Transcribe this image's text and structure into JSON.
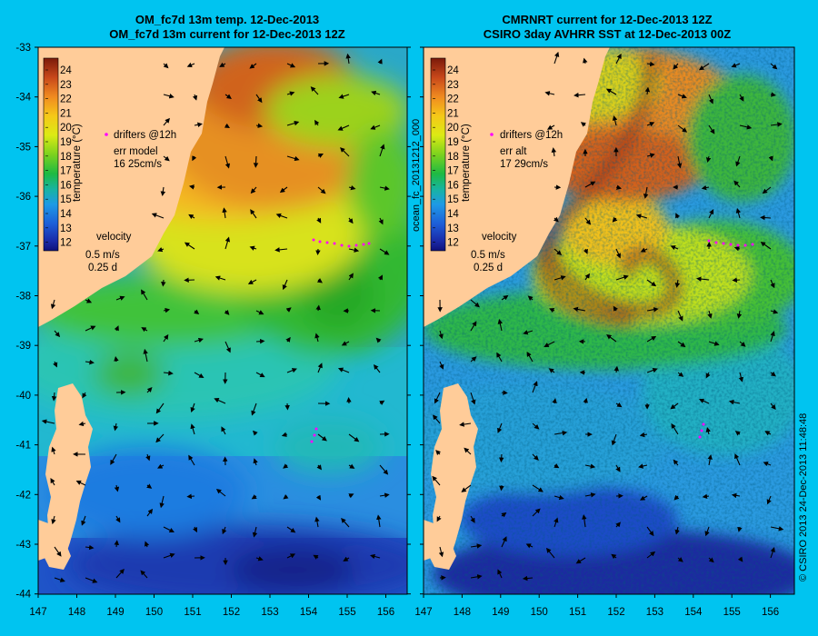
{
  "panels": [
    {
      "title1": "OM_fc7d 13m temp. 12-Dec-2013",
      "title2": "OM_fc7d 13m current for 12-Dec-2013 12Z",
      "drifters": "drifters @12h",
      "err1": "err model",
      "err2": "16 25cm/s"
    },
    {
      "title1": "CMRNRT current for 12-Dec-2013 12Z",
      "title2": "CSIRO 3day AVHRR SST at 12-Dec-2013 00Z",
      "drifters": "drifters @12h",
      "err1": "err alt",
      "err2": "17 29cm/s"
    }
  ],
  "colorbar": {
    "label": "temperature (°C)",
    "ticks": [
      "24",
      "23",
      "22",
      "21",
      "20",
      "19",
      "18",
      "17",
      "16",
      "15",
      "14",
      "13",
      "12"
    ]
  },
  "velocity": {
    "label": "velocity",
    "scale1": "0.5 m/s",
    "scale2": "0.25 d"
  },
  "lat_ticks": [
    "-33",
    "-34",
    "-35",
    "-36",
    "-37",
    "-38",
    "-39",
    "-40",
    "-41",
    "-42",
    "-43",
    "-44"
  ],
  "lon_ticks": [
    "147",
    "148",
    "149",
    "150",
    "151",
    "152",
    "153",
    "154",
    "155",
    "156"
  ],
  "side_left": "ocean_fc_20131212_000",
  "side_right": "© CSIRO 2013   24-Dec-2013 11:48:48",
  "colors": {
    "background": "#00c4f0",
    "land": "#ffcc99",
    "drifter": "#ff00ff"
  }
}
